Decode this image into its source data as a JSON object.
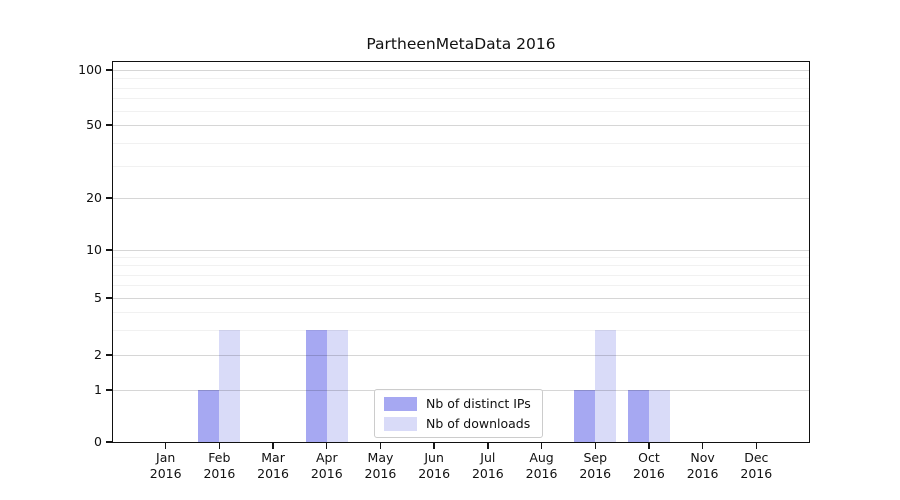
{
  "title": "PartheenMetaData 2016",
  "chart_data": {
    "type": "bar",
    "title": "PartheenMetaData 2016",
    "categories": [
      "Jan",
      "Feb",
      "Mar",
      "Apr",
      "May",
      "Jun",
      "Jul",
      "Aug",
      "Sep",
      "Oct",
      "Nov",
      "Dec"
    ],
    "x_year": "2016",
    "series": [
      {
        "name": "Nb of distinct IPs",
        "color": "#a6a8f2",
        "values": [
          0,
          1,
          0,
          3,
          0,
          0,
          0,
          0,
          1,
          1,
          0,
          0
        ]
      },
      {
        "name": "Nb of downloads",
        "color": "#d9dbf8",
        "values": [
          0,
          3,
          0,
          3,
          0,
          0,
          0,
          0,
          3,
          1,
          0,
          0
        ]
      }
    ],
    "y_ticks": [
      0,
      1,
      2,
      5,
      10,
      20,
      50,
      100
    ],
    "y_minor_ticks": [
      3,
      4,
      6,
      7,
      8,
      9,
      30,
      40,
      60,
      70,
      80,
      90
    ],
    "scale": "symlog",
    "ylim": [
      0,
      115
    ],
    "xlabel": "",
    "ylabel": "",
    "grid": "horizontal",
    "legend_position": "bottom-center"
  }
}
